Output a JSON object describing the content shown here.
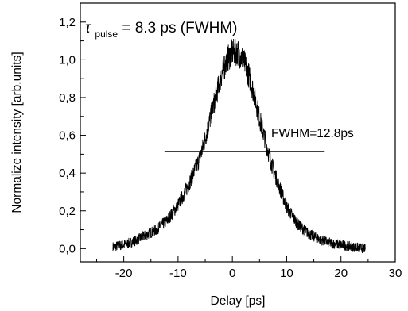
{
  "chart_data": {
    "type": "line",
    "xlabel": "Delay [ps]",
    "ylabel": "Normalize intensity [arb.units]",
    "xlim": [
      -28,
      30
    ],
    "ylim": [
      -0.07,
      1.3
    ],
    "x_ticks": [
      -20,
      -10,
      0,
      10,
      20,
      30
    ],
    "x_tick_labels": [
      "-20",
      "-10",
      "0",
      "10",
      "20",
      "30"
    ],
    "y_ticks": [
      0.0,
      0.2,
      0.4,
      0.6,
      0.8,
      1.0,
      1.2
    ],
    "y_tick_labels": [
      "0,0",
      "0,2",
      "0,4",
      "0,6",
      "0,8",
      "1,0",
      "1,2"
    ],
    "grid": false,
    "legend": "none",
    "series": [
      {
        "color": "#000000",
        "x": [
          -22,
          -20,
          -18,
          -16,
          -14,
          -12,
          -10,
          -8,
          -6,
          -5,
          -4,
          -3,
          -2,
          -1,
          0,
          1,
          2,
          3,
          4,
          5,
          6,
          7,
          8,
          10,
          12,
          14,
          16,
          18,
          20,
          22,
          24.5
        ],
        "y": [
          0.01,
          0.02,
          0.04,
          0.07,
          0.1,
          0.15,
          0.23,
          0.34,
          0.48,
          0.58,
          0.7,
          0.81,
          0.92,
          1.0,
          1.04,
          1.04,
          1.0,
          0.92,
          0.82,
          0.69,
          0.58,
          0.47,
          0.38,
          0.22,
          0.13,
          0.08,
          0.05,
          0.03,
          0.02,
          0.01,
          0.0
        ]
      }
    ],
    "annotations": {
      "tau_symbol": "τ",
      "tau_subscript": "pulse",
      "tau_value": "= 8.3 ps (FWHM)",
      "fwhm_label": "FWHM=12.8ps",
      "fwhm_line": {
        "x_start": -12.5,
        "x_end": 17,
        "y": 0.515
      }
    }
  }
}
